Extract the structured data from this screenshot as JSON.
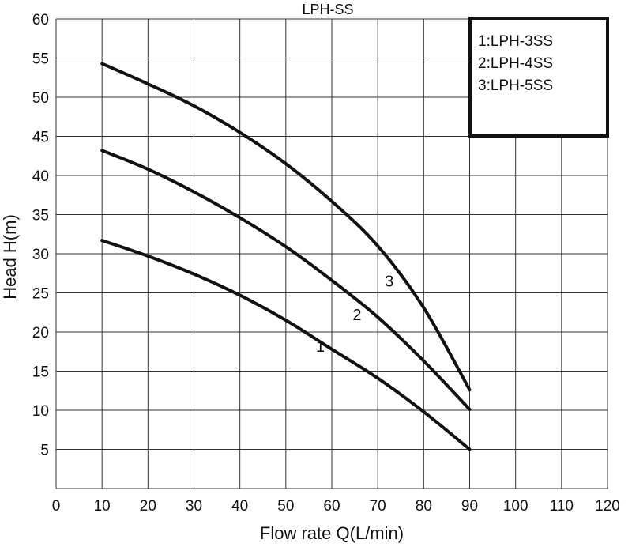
{
  "chart_data": {
    "type": "line",
    "title": "LPH-SS",
    "xlabel": "Flow rate Q(L/min)",
    "ylabel": "Head H(m)",
    "xlim": [
      0,
      120
    ],
    "ylim": [
      0,
      60
    ],
    "x_ticks": [
      0,
      10,
      20,
      30,
      40,
      50,
      60,
      70,
      80,
      90,
      100,
      110,
      120
    ],
    "y_ticks": [
      5,
      10,
      15,
      20,
      25,
      30,
      35,
      40,
      45,
      50,
      55,
      60
    ],
    "grid": true,
    "legend": {
      "placement": "top-right",
      "entries": [
        "1:LPH-3SS",
        "2:LPH-4SS",
        "3:LPH-5SS"
      ]
    },
    "series": [
      {
        "label": "1",
        "x": [
          10,
          20,
          30,
          40,
          50,
          60,
          70,
          80,
          90
        ],
        "y": [
          31.7,
          29.7,
          27.4,
          24.7,
          21.5,
          17.8,
          14.1,
          9.8,
          5.0
        ]
      },
      {
        "label": "2",
        "x": [
          10,
          20,
          30,
          40,
          50,
          60,
          70,
          80,
          90
        ],
        "y": [
          43.2,
          40.8,
          37.9,
          34.6,
          30.9,
          26.6,
          21.9,
          16.3,
          10.1
        ]
      },
      {
        "label": "3",
        "x": [
          10,
          20,
          30,
          40,
          50,
          60,
          70,
          80,
          90
        ],
        "y": [
          54.3,
          51.7,
          48.9,
          45.5,
          41.5,
          36.7,
          31.0,
          23.1,
          12.6
        ]
      }
    ],
    "curve_labels": [
      {
        "text": "1",
        "x": 57.5,
        "y": 17.5
      },
      {
        "text": "2",
        "x": 65.5,
        "y": 21.5
      },
      {
        "text": "3",
        "x": 72.5,
        "y": 25.8
      }
    ]
  }
}
